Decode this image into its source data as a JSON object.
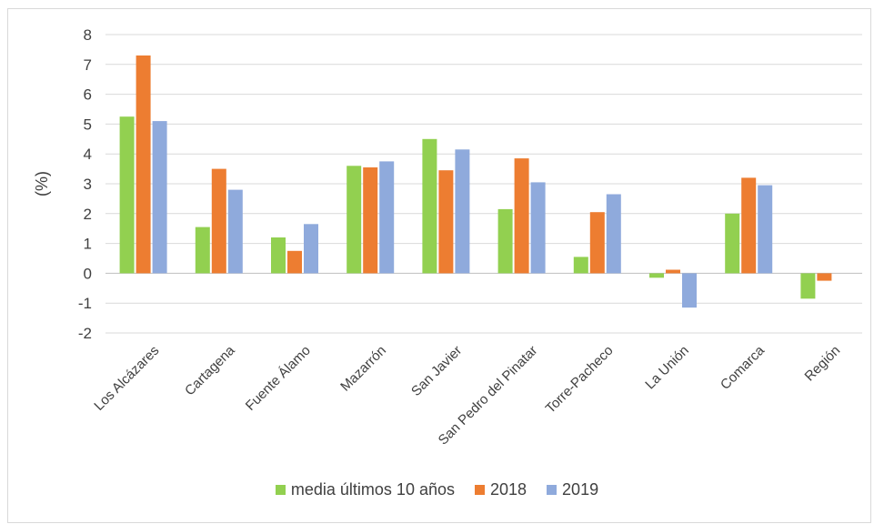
{
  "chart_data": {
    "type": "bar",
    "title": "",
    "xlabel": "",
    "ylabel": "(%)",
    "ylim": [
      -2,
      8
    ],
    "yticks": [
      -2,
      -1,
      0,
      1,
      2,
      3,
      4,
      5,
      6,
      7,
      8
    ],
    "grid": true,
    "legend_position": "bottom",
    "categories": [
      "Los Alcázares",
      "Cartagena",
      "Fuente Álamo",
      "Mazarrón",
      "San Javier",
      "San Pedro del Pinatar",
      "Torre-Pacheco",
      "La Unión",
      "Comarca",
      "Región"
    ],
    "series": [
      {
        "name": "media últimos 10 años",
        "color": "#92d050",
        "values": [
          5.25,
          1.55,
          1.2,
          3.6,
          4.5,
          2.15,
          0.55,
          -0.15,
          2.0,
          -0.85
        ]
      },
      {
        "name": "2018",
        "color": "#ed7d31",
        "values": [
          7.3,
          3.5,
          0.75,
          3.55,
          3.45,
          3.85,
          2.05,
          0.12,
          3.2,
          -0.25
        ]
      },
      {
        "name": "2019",
        "color": "#8faadc",
        "values": [
          5.1,
          2.8,
          1.65,
          3.75,
          4.15,
          3.05,
          2.65,
          -1.15,
          2.95,
          0.0
        ]
      }
    ]
  }
}
